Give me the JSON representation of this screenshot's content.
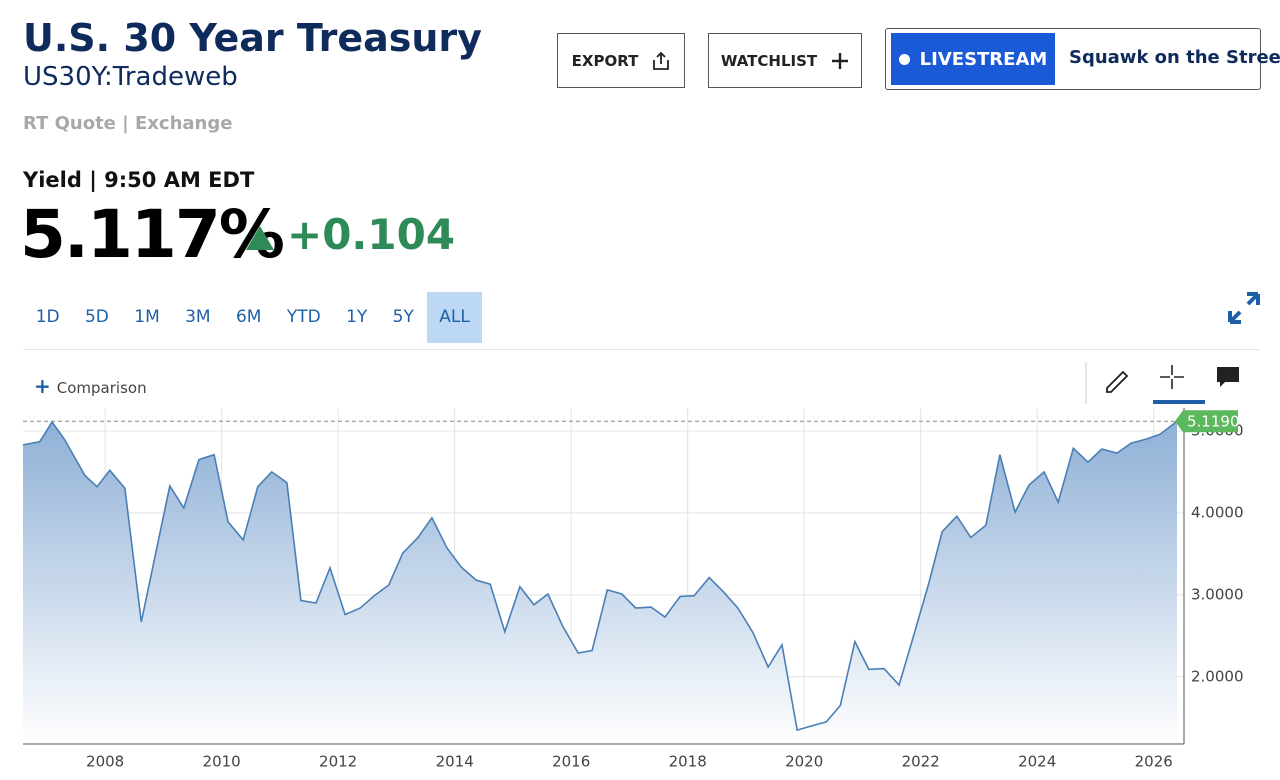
{
  "header": {
    "title": "U.S. 30 Year Treasury",
    "symbol": "US30Y:Tradeweb",
    "source": "RT Quote | Exchange"
  },
  "buttons": {
    "export": "EXPORT",
    "watchlist": "WATCHLIST",
    "livestream": "LIVESTREAM",
    "show": "Squawk on the Street"
  },
  "quote": {
    "label": "Yield | 9:50 AM EDT",
    "price": "5.117%",
    "change": "+0.104"
  },
  "ranges": [
    "1D",
    "5D",
    "1M",
    "3M",
    "6M",
    "YTD",
    "1Y",
    "5Y",
    "ALL"
  ],
  "comparison": "Comparison",
  "chart_data": {
    "type": "area",
    "color": "#4a7fb5",
    "x": [
      2006.59,
      2006.88,
      2007.09,
      2007.31,
      2007.65,
      2007.86,
      2008.08,
      2008.34,
      2008.62,
      2009.11,
      2009.35,
      2009.61,
      2009.87,
      2010.11,
      2010.37,
      2010.62,
      2010.86,
      2011.12,
      2011.36,
      2011.62,
      2011.86,
      2012.12,
      2012.38,
      2012.62,
      2012.87,
      2013.11,
      2013.37,
      2013.61,
      2013.87,
      2014.11,
      2014.37,
      2014.61,
      2014.86,
      2015.12,
      2015.36,
      2015.6,
      2015.86,
      2016.12,
      2016.36,
      2016.62,
      2016.87,
      2017.11,
      2017.37,
      2017.61,
      2017.87,
      2018.11,
      2018.37,
      2018.61,
      2018.86,
      2019.12,
      2019.38,
      2019.62,
      2019.88,
      2020.12,
      2020.38,
      2020.62,
      2020.87,
      2021.11,
      2021.37,
      2021.63,
      2021.87,
      2022.13,
      2022.37,
      2022.62,
      2022.86,
      2023.12,
      2023.36,
      2023.62,
      2023.86,
      2024.12,
      2024.36,
      2024.62,
      2024.87,
      2025.11,
      2025.37,
      2025.61,
      2025.87,
      2026.11,
      2026.4
    ],
    "values": [
      4.83,
      4.87,
      5.11,
      4.89,
      4.46,
      4.32,
      4.52,
      4.3,
      2.67,
      4.33,
      4.06,
      4.65,
      4.71,
      3.89,
      3.67,
      4.32,
      4.5,
      4.37,
      2.93,
      2.9,
      3.33,
      2.76,
      2.84,
      2.99,
      3.12,
      3.51,
      3.7,
      3.94,
      3.57,
      3.34,
      3.18,
      3.13,
      2.55,
      3.1,
      2.88,
      3.01,
      2.61,
      2.29,
      2.32,
      3.06,
      3.01,
      2.84,
      2.85,
      2.73,
      2.98,
      2.99,
      3.21,
      3.04,
      2.84,
      2.54,
      2.12,
      2.39,
      1.35,
      1.4,
      1.45,
      1.65,
      2.43,
      2.09,
      2.1,
      1.9,
      2.48,
      3.12,
      3.77,
      3.96,
      3.7,
      3.85,
      4.71,
      4.01,
      4.34,
      4.5,
      4.13,
      4.79,
      4.62,
      4.78,
      4.73,
      4.85,
      4.9,
      4.96,
      5.119
    ],
    "current": {
      "value": 5.119,
      "label": "5.1190"
    },
    "xlim": [
      2006.59,
      2026.52
    ],
    "ylim": [
      1.18,
      5.28
    ],
    "xticks": [
      2008,
      2010,
      2012,
      2014,
      2016,
      2018,
      2020,
      2022,
      2024,
      2026
    ],
    "yticks": [
      {
        "value": 2,
        "label": "2.0000"
      },
      {
        "value": 3,
        "label": "3.0000"
      },
      {
        "value": 4,
        "label": "4.0000"
      },
      {
        "value": 5,
        "label": "5.0000"
      }
    ],
    "grid": true
  }
}
